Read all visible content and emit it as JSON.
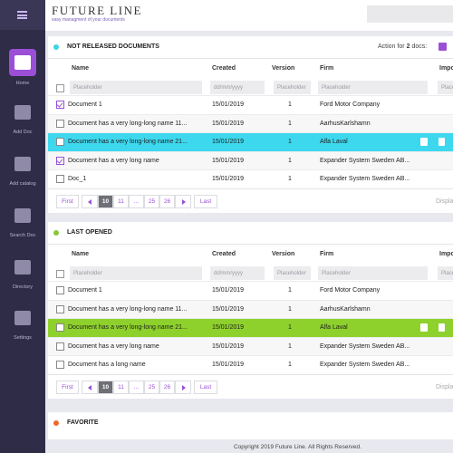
{
  "sidebar": {
    "items": [
      {
        "label": "Home",
        "active": true
      },
      {
        "label": "Add Doc"
      },
      {
        "label": "Add catalog"
      },
      {
        "label": "Search Doc"
      },
      {
        "label": "Directory"
      },
      {
        "label": "Settings"
      }
    ]
  },
  "header": {
    "title": "FUTURE LINE",
    "subtitle": "easy managment of your documents"
  },
  "sections": [
    {
      "title": "NOT RELEASED DOCUMENTS",
      "dot_color": "#3fd3e6",
      "action": {
        "prefix": "Action for",
        "count": "2",
        "suffix": "docs:"
      },
      "columns": [
        "Name",
        "Created",
        "Version",
        "Firm",
        "Impor"
      ],
      "filters": [
        "Placeholder",
        "dd/mm/yyyy",
        "Placeholder",
        "Placeholder",
        "Placeholder"
      ],
      "highlight_color": "#3dd8ee",
      "rows": [
        {
          "name": "Document 1",
          "created": "15/01/2019",
          "version": "1",
          "firm": "Ford Motor Company",
          "checked": true
        },
        {
          "name": "Document has a very long-long name 11...",
          "created": "15/01/2019",
          "version": "1",
          "firm": "AarhusKarlshamn"
        },
        {
          "name": "Document has a very long-long name 21...",
          "created": "15/01/2019",
          "version": "1",
          "firm": "Alfa Laval",
          "selected": true
        },
        {
          "name": "Document has a very long name",
          "created": "15/01/2019",
          "version": "1",
          "firm": "Expander System Sweden AB...",
          "checked": true
        },
        {
          "name": "Doc_1",
          "created": "15/01/2019",
          "version": "1",
          "firm": "Expander System Sweden AB..."
        }
      ],
      "pagination": {
        "first": "First",
        "pages": [
          "10",
          "11",
          "...",
          "25",
          "26"
        ],
        "current": "10",
        "last": "Last",
        "display": "Displa"
      }
    },
    {
      "title": "LAST OPENED",
      "dot_color": "#86c83a",
      "columns": [
        "Name",
        "Created",
        "Version",
        "Firm",
        "Impor"
      ],
      "filters": [
        "Placeholder",
        "dd/mm/yyyy",
        "Placeholder",
        "Placeholder",
        "Placeholder"
      ],
      "highlight_color": "#8ed12c",
      "rows": [
        {
          "name": "Document 1",
          "created": "15/01/2019",
          "version": "1",
          "firm": "Ford Motor Company"
        },
        {
          "name": "Document has a very long-long name 11...",
          "created": "15/01/2019",
          "version": "1",
          "firm": "AarhusKarlshamn"
        },
        {
          "name": "Document has a very long-long name 21...",
          "created": "15/01/2019",
          "version": "1",
          "firm": "Alfa Laval",
          "selected": true
        },
        {
          "name": "Document has a very long name",
          "created": "15/01/2019",
          "version": "1",
          "firm": "Expander System Sweden AB..."
        },
        {
          "name": "Document has a long name",
          "created": "15/01/2019",
          "version": "1",
          "firm": "Expander System Sweden AB..."
        }
      ],
      "pagination": {
        "first": "First",
        "pages": [
          "10",
          "11",
          "...",
          "25",
          "26"
        ],
        "current": "10",
        "last": "Last",
        "display": "Displa"
      }
    },
    {
      "title": "FAVORITE",
      "dot_color": "#ee6a2a"
    }
  ],
  "footer": {
    "text": "Copyright 2019 Future Line. All Rights Reserved."
  }
}
